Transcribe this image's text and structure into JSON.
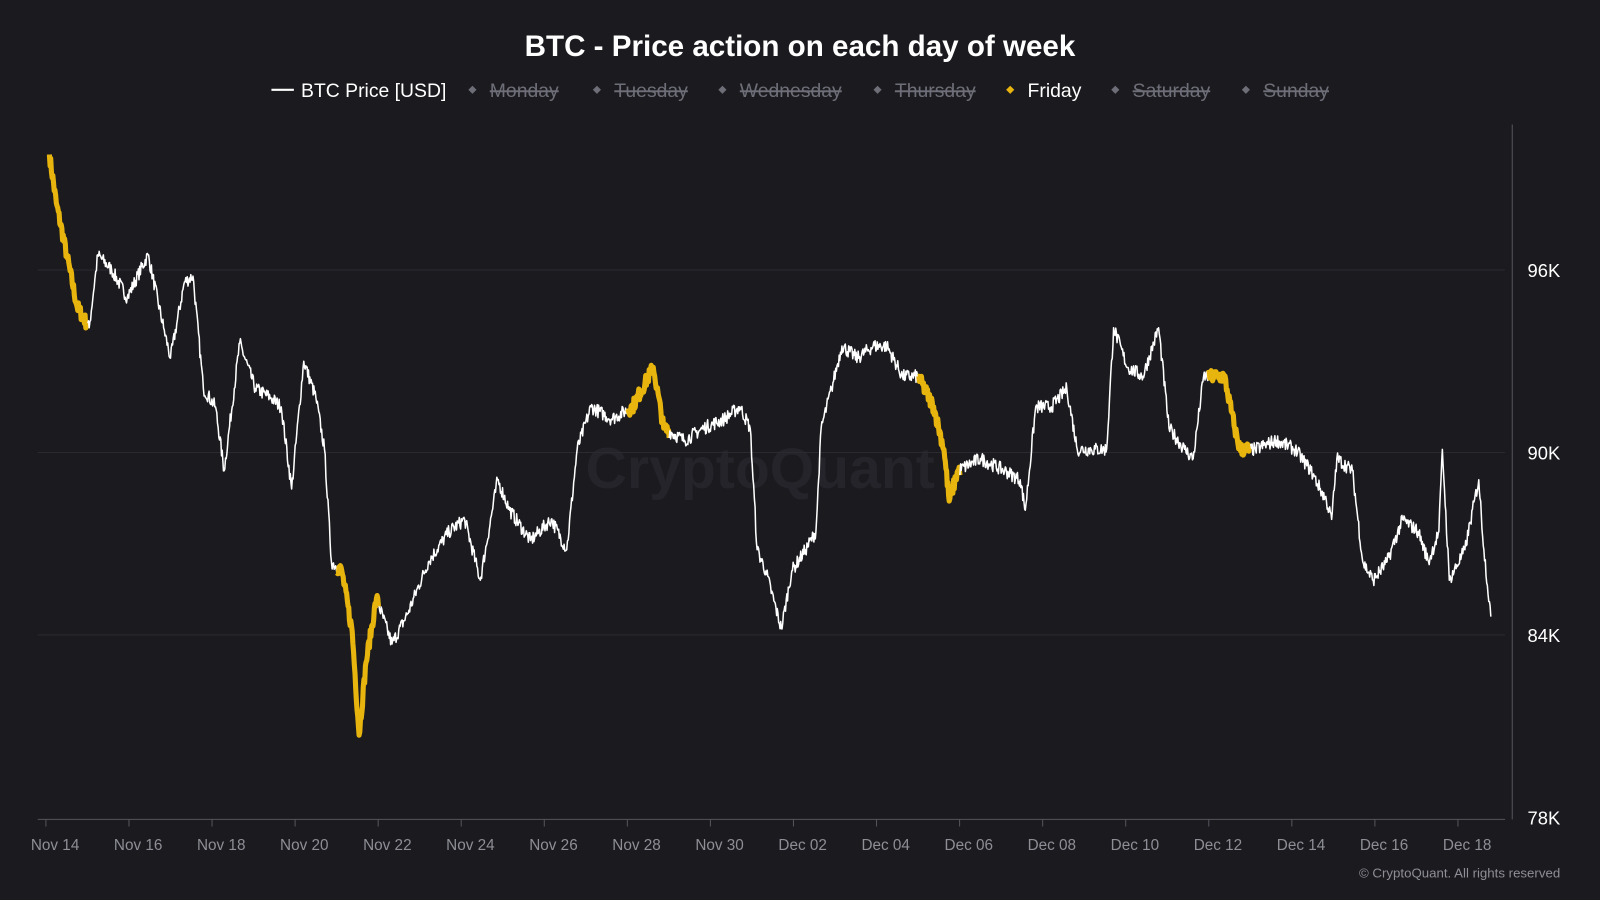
{
  "chart_data": {
    "type": "line",
    "title": "BTC - Price action on each day of week",
    "legend": {
      "placement": "top-center",
      "items": [
        {
          "label": "BTC Price [USD]",
          "active": true,
          "marker": "line",
          "color": "#ffffff"
        },
        {
          "label": "Monday",
          "active": false,
          "marker": "diamond",
          "color": "#6e6e78"
        },
        {
          "label": "Tuesday",
          "active": false,
          "marker": "diamond",
          "color": "#6e6e78"
        },
        {
          "label": "Wednesday",
          "active": false,
          "marker": "diamond",
          "color": "#6e6e78"
        },
        {
          "label": "Thursday",
          "active": false,
          "marker": "diamond",
          "color": "#6e6e78"
        },
        {
          "label": "Friday",
          "active": true,
          "marker": "diamond",
          "color": "#e8b50e"
        },
        {
          "label": "Saturday",
          "active": false,
          "marker": "diamond",
          "color": "#6e6e78"
        },
        {
          "label": "Sunday",
          "active": false,
          "marker": "diamond",
          "color": "#6e6e78"
        }
      ]
    },
    "x_ticks": [
      "Nov 14",
      "Nov 16",
      "Nov 18",
      "Nov 20",
      "Nov 22",
      "Nov 24",
      "Nov 26",
      "Nov 28",
      "Nov 30",
      "Dec 02",
      "Dec 04",
      "Dec 06",
      "Dec 08",
      "Dec 10",
      "Dec 12",
      "Dec 14",
      "Dec 16",
      "Dec 18"
    ],
    "y_ticks": [
      "78K",
      "84K",
      "90K",
      "96K"
    ],
    "y_axis_position": "right",
    "ylim": [
      78000,
      100000
    ],
    "grid": "horizontal",
    "highlight_day": "Friday",
    "colors": {
      "background": "#1a1a1f",
      "price": "#ffffff",
      "friday": "#e8b50e"
    },
    "series": [
      {
        "name": "BTC Price [USD]",
        "points": [
          [
            "Nov 14 02:00",
            99800
          ],
          [
            "Nov 14 06:00",
            98200
          ],
          [
            "Nov 14 12:00",
            96500
          ],
          [
            "Nov 14 18:00",
            94800
          ],
          [
            "Nov 15 01:00",
            94100
          ],
          [
            "Nov 15 06:00",
            96500
          ],
          [
            "Nov 15 14:00",
            96000
          ],
          [
            "Nov 15 23:00",
            95100
          ],
          [
            "Nov 16 11:00",
            96500
          ],
          [
            "Nov 16 20:00",
            94100
          ],
          [
            "Nov 17 00:00",
            93100
          ],
          [
            "Nov 17 08:00",
            95600
          ],
          [
            "Nov 17 13:00",
            95800
          ],
          [
            "Nov 17 19:00",
            92100
          ],
          [
            "Nov 18 02:00",
            91500
          ],
          [
            "Nov 18 07:00",
            89400
          ],
          [
            "Nov 18 16:00",
            93600
          ],
          [
            "Nov 19 01:00",
            92100
          ],
          [
            "Nov 19 10:00",
            91800
          ],
          [
            "Nov 19 16:00",
            91500
          ],
          [
            "Nov 19 22:00",
            88800
          ],
          [
            "Nov 20 05:00",
            93000
          ],
          [
            "Nov 20 12:00",
            91800
          ],
          [
            "Nov 20 17:00",
            90100
          ],
          [
            "Nov 20 21:00",
            86400
          ],
          [
            "Nov 21 03:00",
            86100
          ],
          [
            "Nov 21 09:00",
            84100
          ],
          [
            "Nov 21 13:00",
            80700
          ],
          [
            "Nov 21 17:00",
            83100
          ],
          [
            "Nov 21 23:00",
            85200
          ],
          [
            "Nov 22 08:00",
            83700
          ],
          [
            "Nov 22 17:00",
            84700
          ],
          [
            "Nov 23 05:00",
            86400
          ],
          [
            "Nov 23 17:00",
            87400
          ],
          [
            "Nov 24 02:00",
            87800
          ],
          [
            "Nov 24 11:00",
            85800
          ],
          [
            "Nov 24 21:00",
            89100
          ],
          [
            "Nov 25 04:00",
            88100
          ],
          [
            "Nov 25 16:00",
            87100
          ],
          [
            "Nov 26 04:00",
            87800
          ],
          [
            "Nov 26 13:00",
            86800
          ],
          [
            "Nov 26 19:00",
            90100
          ],
          [
            "Nov 27 03:00",
            91500
          ],
          [
            "Nov 27 15:00",
            91100
          ],
          [
            "Nov 28 03:00",
            91500
          ],
          [
            "Nov 28 15:00",
            92800
          ],
          [
            "Nov 28 21:00",
            90800
          ],
          [
            "Nov 29 09:00",
            90400
          ],
          [
            "Nov 29 20:00",
            90800
          ],
          [
            "Nov 30 08:00",
            91100
          ],
          [
            "Nov 30 17:00",
            91500
          ],
          [
            "Nov 30 23:00",
            90800
          ],
          [
            "Dec 01 03:00",
            86800
          ],
          [
            "Dec 01 08:00",
            86100
          ],
          [
            "Dec 01 17:00",
            84200
          ],
          [
            "Dec 01 23:00",
            86100
          ],
          [
            "Dec 02 07:00",
            86800
          ],
          [
            "Dec 02 13:00",
            87400
          ],
          [
            "Dec 02 16:00",
            90800
          ],
          [
            "Dec 02 22:00",
            92100
          ],
          [
            "Dec 03 04:00",
            93500
          ],
          [
            "Dec 03 13:00",
            93100
          ],
          [
            "Dec 03 22:00",
            93500
          ],
          [
            "Dec 04 06:00",
            93500
          ],
          [
            "Dec 04 15:00",
            92500
          ],
          [
            "Dec 05 00:00",
            92500
          ],
          [
            "Dec 05 09:00",
            91500
          ],
          [
            "Dec 05 15:00",
            90100
          ],
          [
            "Dec 05 18:00",
            88400
          ],
          [
            "Dec 05 23:00",
            89400
          ],
          [
            "Dec 06 12:00",
            89800
          ],
          [
            "Dec 07 02:00",
            89400
          ],
          [
            "Dec 07 11:00",
            89100
          ],
          [
            "Dec 07 14:00",
            88100
          ],
          [
            "Dec 07 20:00",
            91500
          ],
          [
            "Dec 08 05:00",
            91500
          ],
          [
            "Dec 08 14:00",
            92100
          ],
          [
            "Dec 08 20:00",
            90100
          ],
          [
            "Dec 09 04:00",
            90100
          ],
          [
            "Dec 09 13:00",
            90100
          ],
          [
            "Dec 09 17:00",
            94100
          ],
          [
            "Dec 10 01:00",
            92800
          ],
          [
            "Dec 10 10:00",
            92500
          ],
          [
            "Dec 10 19:00",
            94100
          ],
          [
            "Dec 11 01:00",
            90800
          ],
          [
            "Dec 11 10:00",
            90100
          ],
          [
            "Dec 11 15:00",
            89800
          ],
          [
            "Dec 11 21:00",
            92500
          ],
          [
            "Dec 12 09:00",
            92500
          ],
          [
            "Dec 12 15:00",
            90800
          ],
          [
            "Dec 12 18:00",
            90100
          ],
          [
            "Dec 13 03:00",
            90100
          ],
          [
            "Dec 13 15:00",
            90400
          ],
          [
            "Dec 14 02:00",
            90100
          ],
          [
            "Dec 14 11:00",
            89400
          ],
          [
            "Dec 14 20:00",
            88400
          ],
          [
            "Dec 14 23:00",
            87800
          ],
          [
            "Dec 15 02:00",
            89800
          ],
          [
            "Dec 15 11:00",
            89400
          ],
          [
            "Dec 15 17:00",
            86400
          ],
          [
            "Dec 15 23:00",
            85800
          ],
          [
            "Dec 16 07:00",
            86400
          ],
          [
            "Dec 16 16:00",
            87800
          ],
          [
            "Dec 17 01:00",
            87400
          ],
          [
            "Dec 17 07:00",
            86400
          ],
          [
            "Dec 17 13:00",
            87400
          ],
          [
            "Dec 17 15:00",
            90100
          ],
          [
            "Dec 17 19:00",
            85800
          ],
          [
            "Dec 18 04:00",
            86800
          ],
          [
            "Dec 18 12:00",
            89100
          ],
          [
            "Dec 18 15:00",
            86800
          ],
          [
            "Dec 18 19:00",
            84600
          ]
        ]
      }
    ]
  },
  "watermark": "CryptoQuant",
  "copyright": "© CryptoQuant. All rights reserved"
}
